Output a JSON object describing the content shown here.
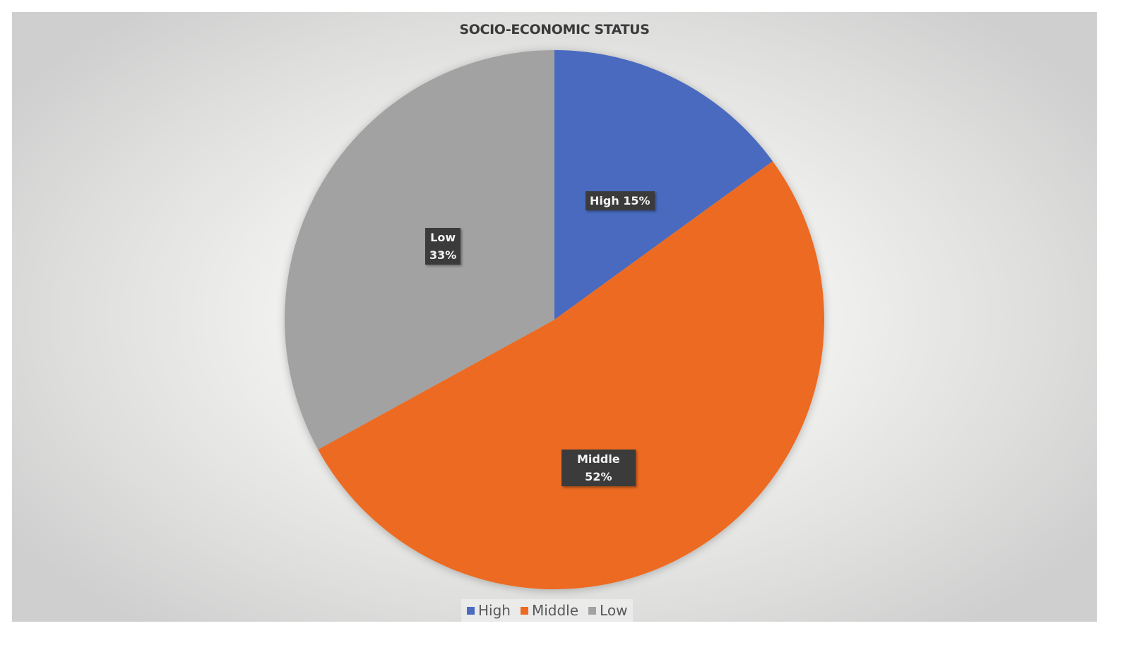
{
  "chart_data": {
    "type": "pie",
    "title": "SOCIO-ECONOMIC STATUS",
    "categories": [
      "High",
      "Middle",
      "Low"
    ],
    "values": [
      15,
      52,
      33
    ],
    "unit": "%",
    "colors": [
      "#4a6bbf",
      "#ec6a23",
      "#a2a2a2"
    ],
    "data_labels": [
      {
        "category": "High",
        "text": "High 15%"
      },
      {
        "category": "Middle",
        "line1": "Middle",
        "line2": "52%"
      },
      {
        "category": "Low",
        "line1": "Low",
        "line2": "33%"
      }
    ],
    "start_angle": "12 o'clock, clockwise",
    "legend": {
      "position": "bottom",
      "entries": [
        "High",
        "Middle",
        "Low"
      ]
    }
  },
  "legend": {
    "items": [
      {
        "label": "High",
        "color": "#4a6bbf"
      },
      {
        "label": "Middle",
        "color": "#ec6a23"
      },
      {
        "label": "Low",
        "color": "#a2a2a2"
      }
    ]
  }
}
